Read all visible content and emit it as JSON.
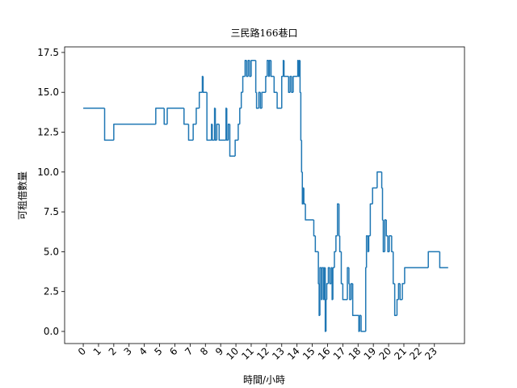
{
  "chart_data": {
    "type": "line",
    "title": "三民路166巷口",
    "x_label": "時間/小時",
    "y_label": "可租借數量",
    "drawstyle": "steps-post",
    "color": "#1f77b4",
    "x": [
      0,
      1.4,
      2.0,
      4.75,
      5.3,
      5.5,
      6.6,
      6.9,
      7.2,
      7.4,
      7.6,
      7.8,
      7.85,
      8.1,
      8.4,
      8.45,
      8.6,
      8.65,
      8.75,
      8.9,
      9.35,
      9.4,
      9.5,
      9.6,
      9.95,
      10.15,
      10.25,
      10.35,
      10.45,
      10.6,
      10.7,
      10.8,
      10.9,
      11.0,
      11.3,
      11.35,
      11.5,
      11.6,
      11.7,
      11.95,
      12.05,
      12.15,
      12.2,
      12.3,
      12.5,
      12.7,
      13.0,
      13.1,
      13.15,
      13.45,
      13.55,
      13.65,
      13.75,
      14.05,
      14.1,
      14.15,
      14.2,
      14.25,
      14.3,
      14.35,
      14.4,
      14.45,
      14.55,
      15.1,
      15.2,
      15.4,
      15.45,
      15.5,
      15.6,
      15.65,
      15.75,
      15.8,
      15.85,
      15.9,
      15.95,
      16.05,
      16.15,
      16.25,
      16.3,
      16.35,
      16.45,
      16.55,
      16.65,
      16.75,
      16.8,
      16.9,
      17.0,
      17.3,
      17.4,
      17.45,
      17.55,
      17.65,
      18.05,
      18.1,
      18.2,
      18.5,
      18.55,
      18.65,
      18.7,
      18.8,
      18.95,
      19.25,
      19.55,
      19.6,
      19.65,
      19.75,
      19.85,
      19.95,
      20.05,
      20.2,
      20.3,
      20.4,
      20.55,
      20.65,
      20.75,
      20.9,
      21.05,
      22.6,
      23.35,
      23.9
    ],
    "values": [
      14,
      12,
      13,
      14,
      13,
      14,
      13,
      12,
      13,
      14,
      15,
      16,
      15,
      12,
      13,
      12,
      14,
      12,
      13,
      12,
      14,
      12,
      13,
      11,
      12,
      13,
      14,
      15,
      16,
      17,
      16,
      17,
      16,
      17,
      15,
      14,
      15,
      14,
      15,
      16,
      17,
      16,
      17,
      16,
      15,
      14,
      16,
      17,
      16,
      15,
      16,
      15,
      16,
      17,
      16,
      17,
      15,
      12,
      10,
      8,
      9,
      8,
      7,
      6,
      5,
      3,
      1,
      4,
      2,
      4,
      2,
      4,
      0,
      2,
      3,
      4,
      3,
      4,
      2,
      4,
      5,
      6,
      8,
      6,
      5,
      3,
      2,
      4,
      3,
      2,
      3,
      1,
      0,
      1,
      0,
      4,
      6,
      5,
      6,
      8,
      9,
      10,
      9,
      7,
      5,
      7,
      6,
      5,
      6,
      5,
      3,
      1,
      2,
      3,
      2,
      3,
      4,
      5,
      4,
      4
    ],
    "xlim": [
      -1.22,
      24.97
    ],
    "xticks": [
      0,
      1,
      2,
      3,
      4,
      5,
      6,
      7,
      8,
      9,
      10,
      11,
      12,
      13,
      14,
      15,
      16,
      17,
      18,
      19,
      20,
      21,
      22,
      23
    ],
    "ylim": [
      -0.76,
      17.85
    ],
    "yticks": [
      {
        "value": 0,
        "label": "0.0"
      },
      2.5,
      {
        "value": 5,
        "label": "5.0"
      },
      7.5,
      {
        "value": 10,
        "label": "10.0"
      },
      12.5,
      {
        "value": 15,
        "label": "15.0"
      },
      17.5
    ]
  }
}
